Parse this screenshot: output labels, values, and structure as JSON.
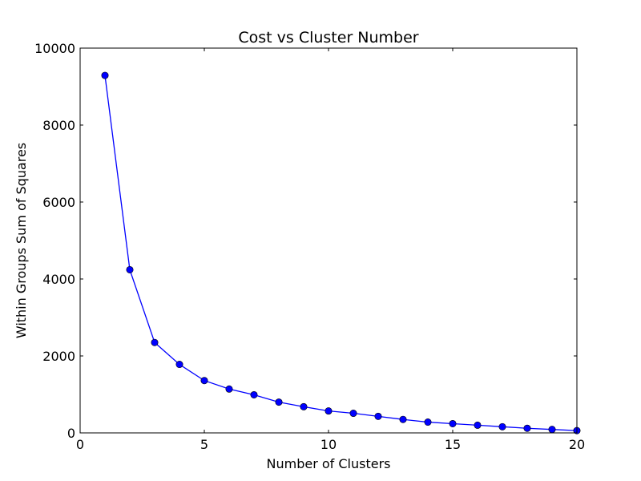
{
  "chart_data": {
    "type": "line",
    "title": "Cost vs Cluster Number",
    "xlabel": "Number of Clusters",
    "ylabel": "Within Groups Sum of Squares",
    "xlim": [
      0,
      20
    ],
    "ylim": [
      0,
      10000
    ],
    "xticks": [
      0,
      5,
      10,
      15,
      20
    ],
    "yticks": [
      0,
      2000,
      4000,
      6000,
      8000,
      10000
    ],
    "grid": false,
    "series": [
      {
        "color": "#0000ff",
        "marker": "circle",
        "x": [
          1,
          2,
          3,
          4,
          5,
          6,
          7,
          8,
          9,
          10,
          11,
          12,
          13,
          14,
          15,
          16,
          17,
          18,
          19,
          20
        ],
        "y": [
          9290,
          4240,
          2350,
          1780,
          1360,
          1140,
          990,
          800,
          680,
          570,
          510,
          430,
          350,
          280,
          240,
          200,
          160,
          120,
          90,
          60
        ]
      }
    ]
  }
}
